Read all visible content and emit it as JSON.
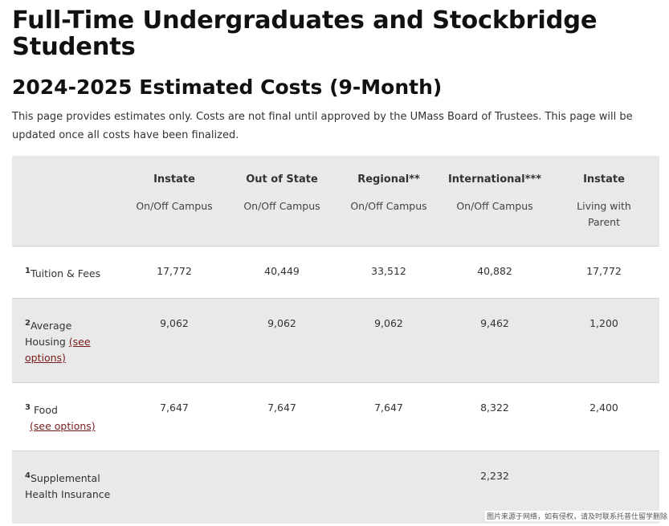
{
  "heading": "Full-Time Undergraduates and Stockbridge Students",
  "subheading": "2024-2025 Estimated Costs (9-Month)",
  "intro": "This page provides estimates only. Costs are not final until approved by the UMass Board of Trustees. This page will be updated once all costs have been finalized.",
  "columns": [
    {
      "title": "Instate",
      "sub": "On/Off Campus"
    },
    {
      "title": "Out of State",
      "sub": "On/Off Campus"
    },
    {
      "title": "Regional**",
      "sub": "On/Off Campus"
    },
    {
      "title": "International***",
      "sub": "On/Off Campus"
    },
    {
      "title": "Instate",
      "sub": "Living with Parent"
    }
  ],
  "rows": [
    {
      "num": "1",
      "label": "Tuition & Fees",
      "link": "",
      "link_after": "",
      "values": [
        "17,772",
        "40,449",
        "33,512",
        "40,882",
        "17,772"
      ]
    },
    {
      "num": "2",
      "label": "Average Housing ",
      "link": "(see options)",
      "link_after": "",
      "values": [
        "9,062",
        "9,062",
        "9,062",
        "9,462",
        "1,200"
      ]
    },
    {
      "num": "3",
      "label": " Food",
      "link": "(see options)",
      "link_after": "",
      "values": [
        "7,647",
        "7,647",
        "7,647",
        "8,322",
        "2,400"
      ]
    },
    {
      "num": "4",
      "label": "Supplemental Health Insurance",
      "link": "",
      "link_after": "",
      "values": [
        "",
        "",
        "",
        "2,232",
        ""
      ]
    }
  ],
  "watermark": "图片来源于网络，如有侵权，请及时联系托普仕留学删除"
}
